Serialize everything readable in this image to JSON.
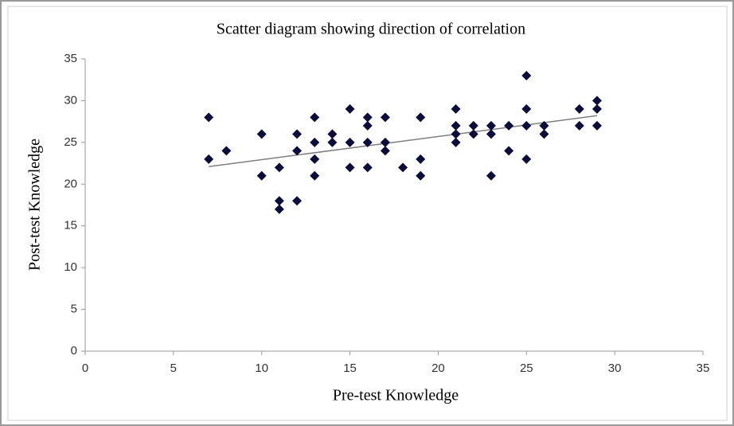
{
  "chart_data": {
    "type": "scatter",
    "title": "Scatter diagram showing direction of correlation",
    "x_label": "Pre-test Knowledge",
    "y_label": "Post-test Knowledge",
    "color": "#0d0d3a",
    "trendline_color": "#7f7f7f",
    "grid": false,
    "xlim": [
      0,
      35
    ],
    "xticks": [
      0,
      5,
      10,
      15,
      20,
      25,
      30,
      35
    ],
    "ylim": [
      0,
      35
    ],
    "yticks": [
      0,
      5,
      10,
      15,
      20,
      25,
      30,
      35
    ],
    "x": [
      7,
      7,
      8,
      10,
      10,
      11,
      11,
      11,
      12,
      12,
      12,
      13,
      13,
      13,
      13,
      14,
      14,
      15,
      15,
      15,
      16,
      16,
      16,
      16,
      17,
      17,
      17,
      18,
      19,
      19,
      19,
      21,
      21,
      21,
      21,
      22,
      22,
      23,
      23,
      23,
      24,
      24,
      25,
      25,
      25,
      25,
      26,
      26,
      28,
      28,
      29,
      29,
      29
    ],
    "values": [
      28,
      23,
      24,
      26,
      21,
      22,
      18,
      17,
      26,
      24,
      18,
      28,
      25,
      23,
      21,
      26,
      25,
      29,
      25,
      22,
      28,
      27,
      25,
      22,
      28,
      25,
      24,
      22,
      28,
      23,
      21,
      29,
      27,
      26,
      25,
      27,
      26,
      27,
      26,
      21,
      27,
      24,
      33,
      29,
      27,
      23,
      27,
      26,
      29,
      27,
      30,
      29,
      27
    ],
    "trendline": {
      "x": [
        7,
        29
      ],
      "values": [
        22.1,
        28.2
      ]
    }
  }
}
